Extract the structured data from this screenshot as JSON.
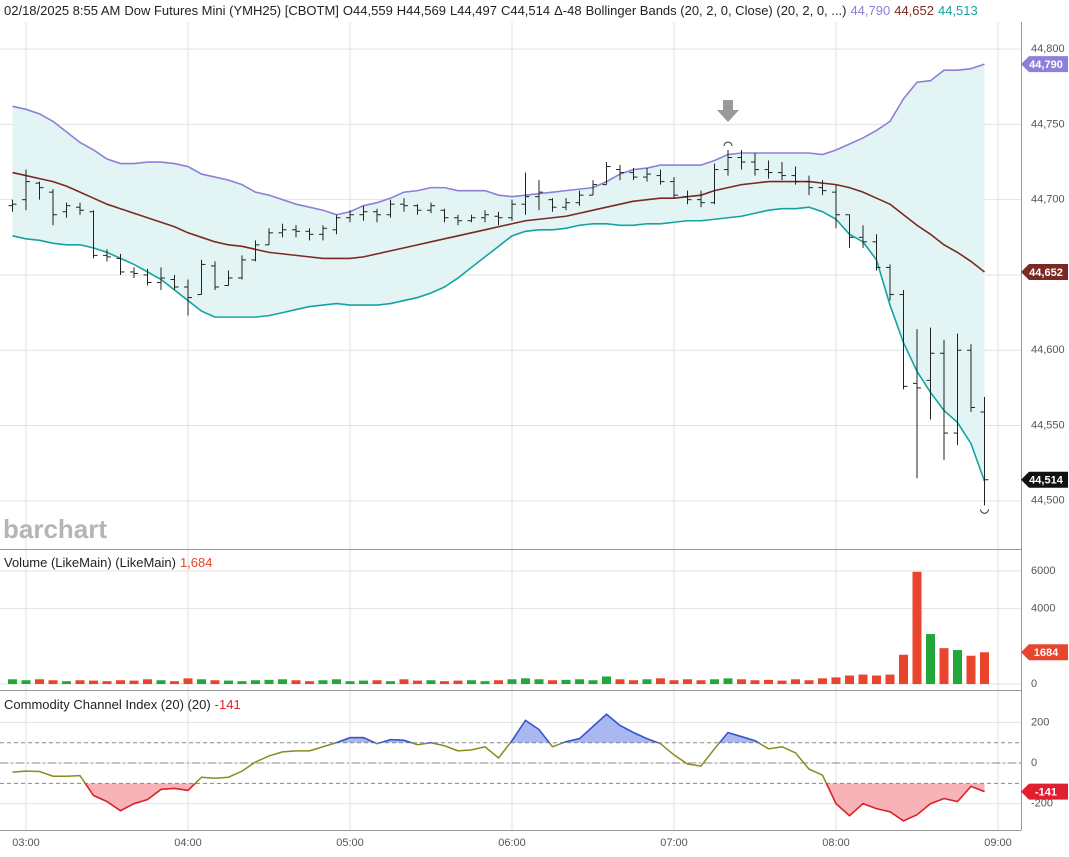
{
  "chart_data": [
    {
      "type": "ohlc",
      "date": "02/18/2025 8:55 AM",
      "title": "Dow Futures Mini (YMH25) [CBOTM]",
      "quote_labels": [
        "O44,559",
        "H44,569",
        "L44,497",
        "C44,514",
        "Δ-48"
      ],
      "study": "Bollinger Bands (20, 2, 0, Close)  (20, 2, 0, ...)",
      "watermark": "barchart",
      "categories": [
        null,
        "03:00",
        null,
        null,
        null,
        null,
        null,
        null,
        null,
        null,
        null,
        null,
        null,
        "04:00",
        null,
        null,
        null,
        null,
        null,
        null,
        null,
        null,
        null,
        null,
        null,
        "05:00",
        null,
        null,
        null,
        null,
        null,
        null,
        null,
        null,
        null,
        null,
        null,
        "06:00",
        null,
        null,
        null,
        null,
        null,
        null,
        null,
        null,
        null,
        null,
        null,
        "07:00",
        null,
        null,
        null,
        null,
        null,
        null,
        null,
        null,
        null,
        null,
        null,
        "08:00",
        null,
        null,
        null,
        null,
        null,
        null,
        null,
        null,
        null,
        null,
        null,
        "09:00"
      ],
      "open": [
        44696,
        44700,
        44711,
        44705,
        44692,
        44695,
        44692,
        44663,
        44661,
        44652,
        44650,
        44645,
        44647,
        44642,
        44637,
        44656,
        44643,
        44648,
        44660,
        44670,
        44678,
        44680,
        44679,
        44677,
        44680,
        44688,
        44690,
        44692,
        44690,
        44697,
        44696,
        44693,
        44693,
        44688,
        44686,
        44688,
        44689,
        44688,
        44697,
        44702,
        44700,
        44695,
        44698,
        44703,
        44710,
        44720,
        44718,
        44715,
        44716,
        44712,
        44702,
        44700,
        44698,
        44720,
        44728,
        44725,
        44720,
        44718,
        44716,
        44712,
        44708,
        44705,
        44690,
        44675,
        44672,
        44655,
        44637,
        44578,
        44580,
        44598,
        44545,
        44600,
        44559,
        null
      ],
      "high": [
        44700,
        44720,
        44712,
        44707,
        44698,
        44698,
        44693,
        44667,
        44664,
        44655,
        44654,
        44655,
        44650,
        44647,
        44660,
        44659,
        44653,
        44663,
        44673,
        44681,
        44684,
        44683,
        44681,
        44683,
        44690,
        44693,
        44696,
        44694,
        44700,
        44701,
        44697,
        44698,
        44694,
        44690,
        44690,
        44693,
        44692,
        44700,
        44718,
        44713,
        44701,
        44701,
        44706,
        44713,
        44725,
        44723,
        44721,
        44721,
        44720,
        44715,
        44706,
        44706,
        44724,
        44733,
        44733,
        44731,
        44726,
        44725,
        44722,
        44716,
        44713,
        44710,
        44690,
        44683,
        44677,
        44657,
        44640,
        44614,
        44615,
        44607,
        44611,
        44604,
        44569,
        null
      ],
      "low": [
        44692,
        44693,
        44700,
        44683,
        44688,
        44690,
        44661,
        44659,
        44650,
        44648,
        44643,
        44640,
        44640,
        44623,
        44637,
        44640,
        44643,
        44647,
        44659,
        44670,
        44675,
        44675,
        44673,
        44673,
        44677,
        44685,
        44686,
        44685,
        44688,
        44692,
        44690,
        44691,
        44685,
        44683,
        44685,
        44685,
        44683,
        44686,
        44690,
        44693,
        44692,
        44693,
        44696,
        44703,
        44710,
        44713,
        44713,
        44712,
        44710,
        44701,
        44697,
        44695,
        44697,
        44716,
        44720,
        44716,
        44714,
        44713,
        44710,
        44703,
        44703,
        44681,
        44668,
        44668,
        44653,
        44633,
        44574,
        44515,
        44554,
        44527,
        44537,
        44559,
        44497,
        null
      ],
      "close": [
        44697,
        44712,
        44708,
        44690,
        44696,
        44693,
        44663,
        44662,
        44652,
        44651,
        44645,
        44648,
        44642,
        44635,
        44657,
        44642,
        44648,
        44660,
        44670,
        44678,
        44680,
        44679,
        44677,
        44681,
        44688,
        44690,
        44692,
        44690,
        44697,
        44696,
        44693,
        44696,
        44688,
        44686,
        44688,
        44690,
        44688,
        44697,
        44702,
        44705,
        44695,
        44698,
        44703,
        44710,
        44722,
        44718,
        44715,
        44717,
        44712,
        44703,
        44700,
        44698,
        44720,
        44728,
        44725,
        44720,
        44718,
        44716,
        44712,
        44708,
        44706,
        44690,
        44675,
        44672,
        44655,
        44637,
        44576,
        44575,
        44598,
        44545,
        44600,
        44562,
        44514,
        null
      ],
      "color": "#222222",
      "close_label": "44,514",
      "bands": [
        {
          "color": "#8e80d8",
          "last_label": "44,790",
          "values": [
            44762,
            44760,
            44757,
            44752,
            44745,
            44738,
            44733,
            44727,
            44724,
            44724,
            44725,
            44725,
            44724,
            44722,
            44717,
            44715,
            44713,
            44710,
            44705,
            44703,
            44700,
            44697,
            44695,
            44693,
            44690,
            44692,
            44696,
            44698,
            44701,
            44705,
            44706,
            44708,
            44708,
            44706,
            44706,
            44706,
            44703,
            44702,
            44703,
            44704,
            44705,
            44706,
            44707,
            44708,
            44712,
            44717,
            44720,
            44721,
            44723,
            44723,
            44723,
            44723,
            44726,
            44730,
            44731,
            44731,
            44731,
            44731,
            44731,
            44731,
            44730,
            44733,
            44737,
            44741,
            44746,
            44752,
            44767,
            44778,
            44779,
            44786,
            44786,
            44787,
            44790,
            null
          ]
        },
        {
          "color": "#7a2a22",
          "last_label": "44,652",
          "values": [
            44718,
            44716,
            44714,
            44712,
            44709,
            44705,
            44701,
            44697,
            44694,
            44691,
            44688,
            44685,
            44682,
            44678,
            44675,
            44672,
            44670,
            44669,
            44667,
            44665,
            44664,
            44663,
            44662,
            44661,
            44661,
            44661,
            44662,
            44664,
            44666,
            44668,
            44670,
            44672,
            44674,
            44676,
            44678,
            44680,
            44682,
            44684,
            44686,
            44687,
            44688,
            44689,
            44691,
            44693,
            44695,
            44697,
            44699,
            44700,
            44701,
            44701,
            44702,
            44703,
            44706,
            44708,
            44710,
            44711,
            44712,
            44712,
            44712,
            44712,
            44711,
            44710,
            44708,
            44705,
            44701,
            44697,
            44690,
            44683,
            44677,
            44670,
            44665,
            44659,
            44652,
            null
          ]
        },
        {
          "color": "#17a2a2",
          "last_label": "44,513",
          "values": [
            44676,
            44674,
            44673,
            44671,
            44670,
            44670,
            44668,
            44665,
            44661,
            44657,
            44652,
            44647,
            44640,
            44633,
            44626,
            44622,
            44622,
            44622,
            44622,
            44623,
            44625,
            44627,
            44629,
            44630,
            44631,
            44630,
            44630,
            44630,
            44631,
            44633,
            44635,
            44638,
            44642,
            44648,
            44655,
            44662,
            44669,
            44676,
            44679,
            44680,
            44680,
            44681,
            44683,
            44684,
            44684,
            44683,
            44683,
            44684,
            44684,
            44685,
            44686,
            44686,
            44687,
            44688,
            44689,
            44691,
            44693,
            44694,
            44694,
            44695,
            44692,
            44687,
            44677,
            44672,
            44660,
            44630,
            44605,
            44586,
            44572,
            44560,
            44552,
            44538,
            44513,
            null
          ]
        }
      ],
      "band_fill": "#e3f4f4",
      "ylim": [
        44468,
        44818
      ],
      "yticks": [
        {
          "value": 44500,
          "label": "44,500"
        },
        {
          "value": 44550,
          "label": "44,550"
        },
        {
          "value": 44600,
          "label": "44,600"
        },
        {
          "value": 44650,
          "label": "44,650"
        },
        {
          "value": 44700,
          "label": "44,700"
        },
        {
          "value": 44750,
          "label": "44,750"
        },
        {
          "value": 44800,
          "label": "44,800"
        }
      ],
      "grid": true
    },
    {
      "type": "volume",
      "title": "Volume (LikeMain)  (LikeMain)",
      "last_label": "1,684",
      "values": [
        250,
        200,
        250,
        200,
        150,
        200,
        180,
        150,
        200,
        180,
        250,
        200,
        150,
        300,
        250,
        200,
        180,
        150,
        200,
        220,
        250,
        200,
        150,
        200,
        250,
        150,
        180,
        200,
        150,
        250,
        180,
        200,
        150,
        180,
        200,
        150,
        200,
        250,
        300,
        250,
        200,
        220,
        250,
        200,
        400,
        250,
        200,
        250,
        300,
        200,
        250,
        200,
        250,
        300,
        250,
        200,
        220,
        180,
        250,
        200,
        300,
        350,
        450,
        500,
        450,
        500,
        1550,
        5950,
        2650,
        1900,
        1800,
        1500,
        1684,
        null
      ],
      "up_color": "#22a83a",
      "down_color": "#e8452c",
      "ylim": [
        0,
        7000
      ],
      "yticks": [
        0,
        4000,
        6000
      ],
      "grid": true
    },
    {
      "type": "cci",
      "title": "Commodity Channel Index (20)  (20)",
      "values": [
        -45,
        -40,
        -42,
        -65,
        -65,
        -62,
        -160,
        -190,
        -235,
        -200,
        -180,
        -130,
        -125,
        -135,
        -70,
        -75,
        -70,
        -40,
        5,
        35,
        55,
        60,
        60,
        80,
        100,
        125,
        125,
        95,
        115,
        112,
        90,
        100,
        85,
        60,
        65,
        80,
        25,
        110,
        210,
        165,
        80,
        105,
        120,
        180,
        240,
        185,
        150,
        120,
        95,
        40,
        -5,
        -15,
        70,
        150,
        130,
        110,
        70,
        80,
        50,
        -30,
        -60,
        -200,
        -260,
        -200,
        -225,
        -240,
        -285,
        -255,
        -200,
        -175,
        -190,
        -115,
        -141,
        null
      ],
      "color": "#8a8a1e",
      "above_color": "#3355dd",
      "above_fill": "#aab8f2",
      "below_color": "#e02030",
      "below_fill": "#f7b3b8",
      "levels": [
        100,
        -100
      ],
      "ylim": [
        -330,
        340
      ],
      "yticks": [
        -200,
        0,
        200
      ],
      "grid": true
    }
  ]
}
